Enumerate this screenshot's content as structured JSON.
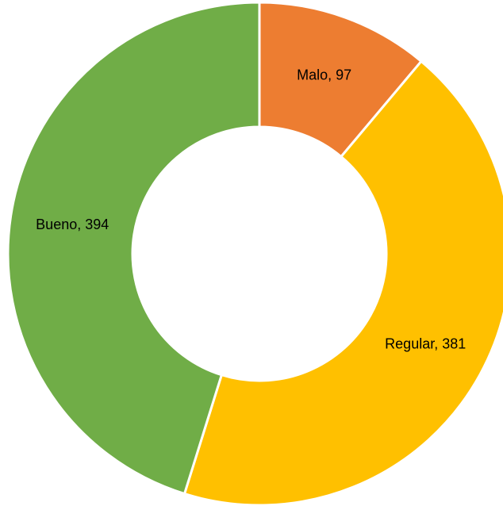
{
  "chart_data": {
    "type": "donut",
    "values": [
      97,
      381,
      394
    ],
    "value_labels": [
      "Malo, 97",
      "Regular, 381",
      "Bueno, 394"
    ],
    "colors": [
      "#ED7D31",
      "#FFC000",
      "#70AD47"
    ]
  }
}
